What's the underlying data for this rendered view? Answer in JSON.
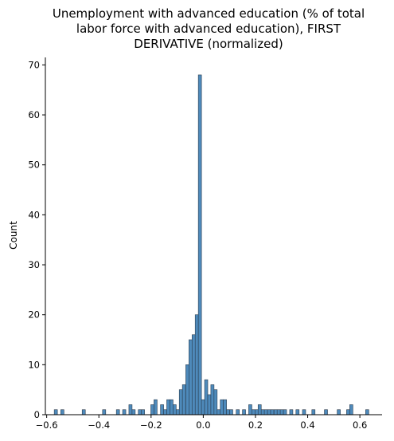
{
  "chart_data": {
    "type": "bar",
    "title_lines": [
      "Unemployment with advanced education (% of total",
      "labor force with advanced education), FIRST",
      "DERIVATIVE (normalized)"
    ],
    "xlabel": "",
    "ylabel": "Count",
    "xlim": [
      -0.605,
      0.685
    ],
    "ylim": [
      0,
      71.5
    ],
    "x_ticks": [
      -0.6,
      -0.4,
      -0.2,
      0.0,
      0.2,
      0.4,
      0.6
    ],
    "x_tick_labels": [
      "−0.6",
      "−0.4",
      "−0.2",
      "0.0",
      "0.2",
      "0.4",
      "0.6"
    ],
    "y_ticks": [
      0,
      10,
      20,
      30,
      40,
      50,
      60,
      70
    ],
    "y_tick_labels": [
      "0",
      "10",
      "20",
      "30",
      "40",
      "50",
      "60",
      "70"
    ],
    "bin_width": 0.0122,
    "bins": [
      {
        "x": -0.571,
        "count": 1
      },
      {
        "x": -0.546,
        "count": 1
      },
      {
        "x": -0.464,
        "count": 1
      },
      {
        "x": -0.386,
        "count": 1
      },
      {
        "x": -0.333,
        "count": 1
      },
      {
        "x": -0.309,
        "count": 1
      },
      {
        "x": -0.285,
        "count": 2
      },
      {
        "x": -0.273,
        "count": 1
      },
      {
        "x": -0.249,
        "count": 1
      },
      {
        "x": -0.237,
        "count": 1
      },
      {
        "x": -0.201,
        "count": 2
      },
      {
        "x": -0.189,
        "count": 3
      },
      {
        "x": -0.164,
        "count": 2
      },
      {
        "x": -0.152,
        "count": 1
      },
      {
        "x": -0.14,
        "count": 3
      },
      {
        "x": -0.128,
        "count": 3
      },
      {
        "x": -0.116,
        "count": 2
      },
      {
        "x": -0.104,
        "count": 1
      },
      {
        "x": -0.092,
        "count": 5
      },
      {
        "x": -0.08,
        "count": 6
      },
      {
        "x": -0.067,
        "count": 10
      },
      {
        "x": -0.055,
        "count": 15
      },
      {
        "x": -0.043,
        "count": 16
      },
      {
        "x": -0.031,
        "count": 20
      },
      {
        "x": -0.019,
        "count": 68
      },
      {
        "x": -0.007,
        "count": 3
      },
      {
        "x": 0.005,
        "count": 7
      },
      {
        "x": 0.017,
        "count": 4
      },
      {
        "x": 0.029,
        "count": 6
      },
      {
        "x": 0.041,
        "count": 5
      },
      {
        "x": 0.053,
        "count": 1
      },
      {
        "x": 0.065,
        "count": 3
      },
      {
        "x": 0.077,
        "count": 3
      },
      {
        "x": 0.089,
        "count": 1
      },
      {
        "x": 0.101,
        "count": 1
      },
      {
        "x": 0.126,
        "count": 1
      },
      {
        "x": 0.15,
        "count": 1
      },
      {
        "x": 0.174,
        "count": 2
      },
      {
        "x": 0.186,
        "count": 1
      },
      {
        "x": 0.198,
        "count": 1
      },
      {
        "x": 0.21,
        "count": 2
      },
      {
        "x": 0.222,
        "count": 1
      },
      {
        "x": 0.234,
        "count": 1
      },
      {
        "x": 0.246,
        "count": 1
      },
      {
        "x": 0.258,
        "count": 1
      },
      {
        "x": 0.271,
        "count": 1
      },
      {
        "x": 0.283,
        "count": 1
      },
      {
        "x": 0.295,
        "count": 1
      },
      {
        "x": 0.307,
        "count": 1
      },
      {
        "x": 0.331,
        "count": 1
      },
      {
        "x": 0.355,
        "count": 1
      },
      {
        "x": 0.38,
        "count": 1
      },
      {
        "x": 0.416,
        "count": 1
      },
      {
        "x": 0.464,
        "count": 1
      },
      {
        "x": 0.513,
        "count": 1
      },
      {
        "x": 0.549,
        "count": 1
      },
      {
        "x": 0.561,
        "count": 2
      },
      {
        "x": 0.622,
        "count": 1
      }
    ],
    "colors": {
      "bar_fill": "#3b7db4",
      "bar_edge": "#2c3e50",
      "axis": "#000000"
    },
    "grid": false,
    "legend": "none"
  }
}
